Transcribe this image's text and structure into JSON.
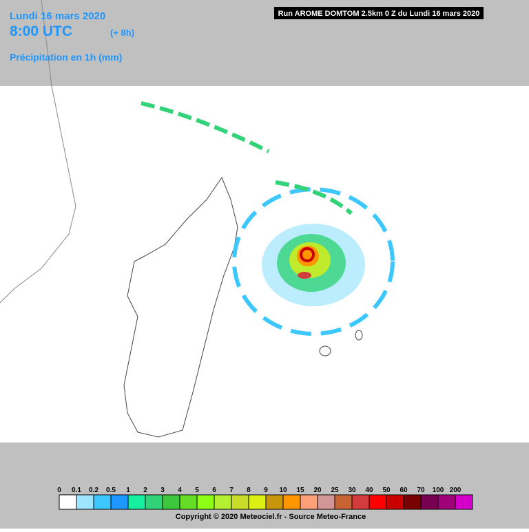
{
  "header": {
    "date": "Lundi 16 mars 2020",
    "time": "8:00 UTC",
    "offset": "(+ 8h)",
    "field": "Précipitation en 1h (mm)",
    "run": "Run AROME DOMTOM 2.5km 0 Z du Lundi 16 mars 2020"
  },
  "legend": {
    "items": [
      {
        "label": "0",
        "color": "#ffffff"
      },
      {
        "label": "0.1",
        "color": "#9ee6ff"
      },
      {
        "label": "0.2",
        "color": "#3cc8ff"
      },
      {
        "label": "0.5",
        "color": "#1e96ff"
      },
      {
        "label": "1",
        "color": "#14f0a0"
      },
      {
        "label": "2",
        "color": "#32d278"
      },
      {
        "label": "3",
        "color": "#3cc83c"
      },
      {
        "label": "4",
        "color": "#64dc28"
      },
      {
        "label": "5",
        "color": "#8cff14"
      },
      {
        "label": "6",
        "color": "#b4f032"
      },
      {
        "label": "7",
        "color": "#c8dc28"
      },
      {
        "label": "8",
        "color": "#dcf014"
      },
      {
        "label": "9",
        "color": "#c8960a"
      },
      {
        "label": "10",
        "color": "#ff9600"
      },
      {
        "label": "15",
        "color": "#ffa078"
      },
      {
        "label": "20",
        "color": "#d29696"
      },
      {
        "label": "25",
        "color": "#c86432"
      },
      {
        "label": "30",
        "color": "#d23c3c"
      },
      {
        "label": "40",
        "color": "#ff0000"
      },
      {
        "label": "50",
        "color": "#c80000"
      },
      {
        "label": "60",
        "color": "#780000"
      },
      {
        "label": "70",
        "color": "#780050"
      },
      {
        "label": "100",
        "color": "#a00078"
      },
      {
        "label": "200",
        "color": "#d200c8"
      }
    ]
  },
  "footer": {
    "copyright": "Copyright © 2020 Meteociel.fr - Source Meteo-France"
  }
}
